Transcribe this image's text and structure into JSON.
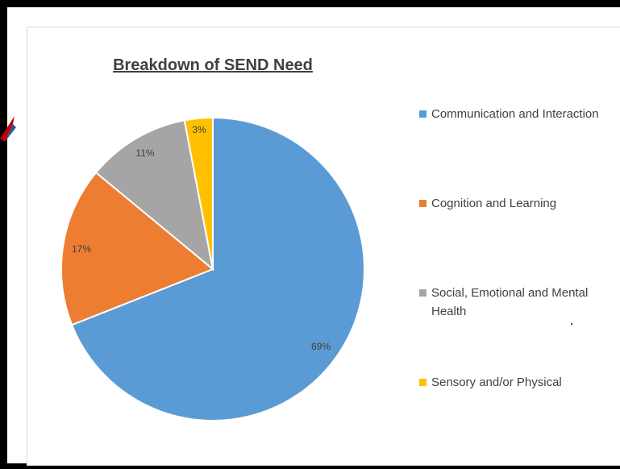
{
  "chart_data": {
    "type": "pie",
    "title": "Breakdown of SEND Need",
    "slices": [
      {
        "label": "Communication and Interaction",
        "value": 69,
        "display": "69%",
        "color": "#5b9bd5"
      },
      {
        "label": "Cognition and Learning",
        "value": 17,
        "display": "17%",
        "color": "#ed7d31"
      },
      {
        "label": "Social, Emotional and Mental Health",
        "value": 11,
        "display": "11%",
        "color": "#a5a5a5"
      },
      {
        "label": "Sensory and/or Physical",
        "value": 3,
        "display": "3%",
        "color": "#ffc000"
      }
    ],
    "legend_position": "right"
  }
}
